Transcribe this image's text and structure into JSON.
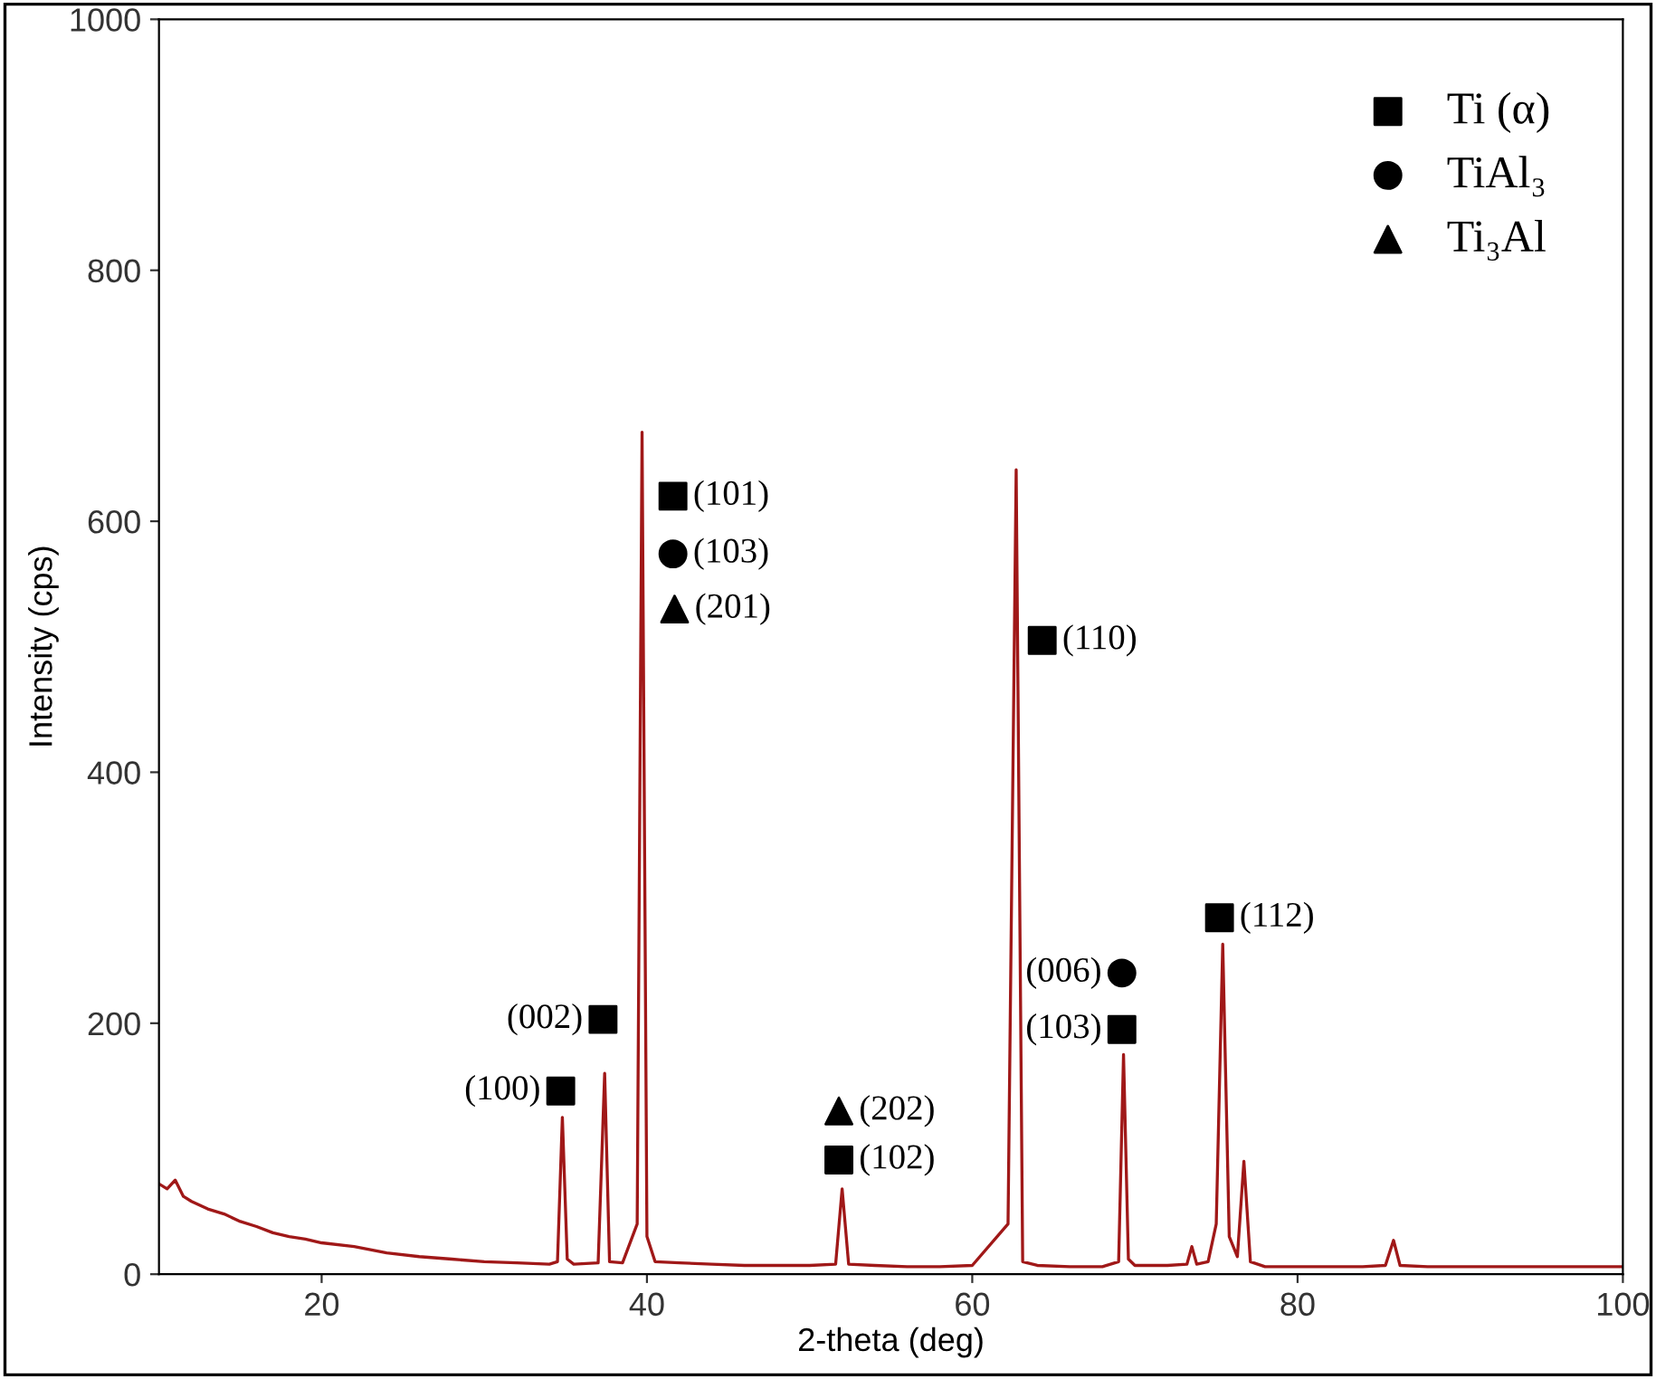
{
  "chart_data": {
    "type": "line",
    "xlabel": "2-theta (deg)",
    "ylabel": "Intensity (cps)",
    "xlim": [
      10,
      100
    ],
    "ylim": [
      0,
      1000
    ],
    "xticks": [
      20,
      40,
      60,
      80,
      100
    ],
    "yticks": [
      0,
      200,
      400,
      600,
      800,
      1000
    ],
    "grid": false,
    "legend": "top right",
    "series": [
      {
        "color": "#a01818",
        "marker": "none",
        "line_style": "solid",
        "x": [
          10,
          10.5,
          11,
          11.5,
          12,
          13,
          14,
          15,
          16,
          17,
          18,
          19,
          20,
          22,
          24,
          26,
          28,
          30,
          32,
          34,
          34.5,
          34.8,
          35.1,
          35.5,
          37,
          37.4,
          37.7,
          38.5,
          39.4,
          39.7,
          40.0,
          40.5,
          42,
          44,
          46,
          48,
          50,
          51.6,
          52.0,
          52.4,
          54,
          56,
          58,
          60,
          62.2,
          62.7,
          63.1,
          64,
          66,
          68,
          69.0,
          69.3,
          69.6,
          70,
          72,
          73.2,
          73.5,
          73.8,
          74.5,
          75.0,
          75.4,
          75.8,
          76.3,
          76.7,
          77.1,
          78,
          80,
          82,
          84,
          85.4,
          85.9,
          86.3,
          88,
          90,
          92,
          94,
          96,
          98,
          100
        ],
        "values": [
          72,
          68,
          75,
          62,
          58,
          52,
          48,
          42,
          38,
          33,
          30,
          28,
          25,
          22,
          17,
          14,
          12,
          10,
          9,
          8,
          10,
          125,
          12,
          8,
          9,
          160,
          10,
          9,
          40,
          671,
          30,
          10,
          9,
          8,
          7,
          7,
          7,
          8,
          68,
          8,
          7,
          6,
          6,
          7,
          40,
          641,
          10,
          7,
          6,
          6,
          10,
          175,
          12,
          7,
          7,
          8,
          22,
          8,
          10,
          40,
          263,
          30,
          14,
          90,
          10,
          6,
          6,
          6,
          6,
          7,
          27,
          7,
          6,
          6,
          6,
          6,
          6,
          6,
          6
        ]
      },
      {
        "name": "Ti (α)",
        "type": "scatter",
        "color": "#000000",
        "marker": "square",
        "x": [
          34.7,
          37.3,
          41.6,
          64.3,
          51.8,
          69.2,
          75.2
        ],
        "values": [
          146,
          203,
          620,
          505,
          91,
          195,
          284
        ]
      },
      {
        "name": "TiAl₃",
        "type": "scatter",
        "color": "#000000",
        "marker": "circle",
        "x": [
          41.6,
          69.2
        ],
        "values": [
          574,
          240
        ]
      },
      {
        "name": "Ti₃Al",
        "type": "scatter",
        "color": "#000000",
        "marker": "triangle",
        "x": [
          41.7,
          51.8
        ],
        "values": [
          530,
          130
        ]
      }
    ],
    "annotations": [
      {
        "text": "(100)",
        "x": 34.7,
        "y": 146
      },
      {
        "text": "(002)",
        "x": 37.3,
        "y": 203
      },
      {
        "text": "(101)",
        "x": 41.6,
        "y": 620
      },
      {
        "text": "(103)",
        "x": 41.6,
        "y": 574
      },
      {
        "text": "(201)",
        "x": 41.7,
        "y": 530
      },
      {
        "text": "(110)",
        "x": 64.3,
        "y": 505
      },
      {
        "text": "(202)",
        "x": 51.8,
        "y": 130
      },
      {
        "text": "(102)",
        "x": 51.8,
        "y": 91
      },
      {
        "text": "(006)",
        "x": 69.2,
        "y": 240
      },
      {
        "text": "(103)",
        "x": 69.2,
        "y": 195
      },
      {
        "text": "(112)",
        "x": 75.2,
        "y": 284
      }
    ]
  }
}
